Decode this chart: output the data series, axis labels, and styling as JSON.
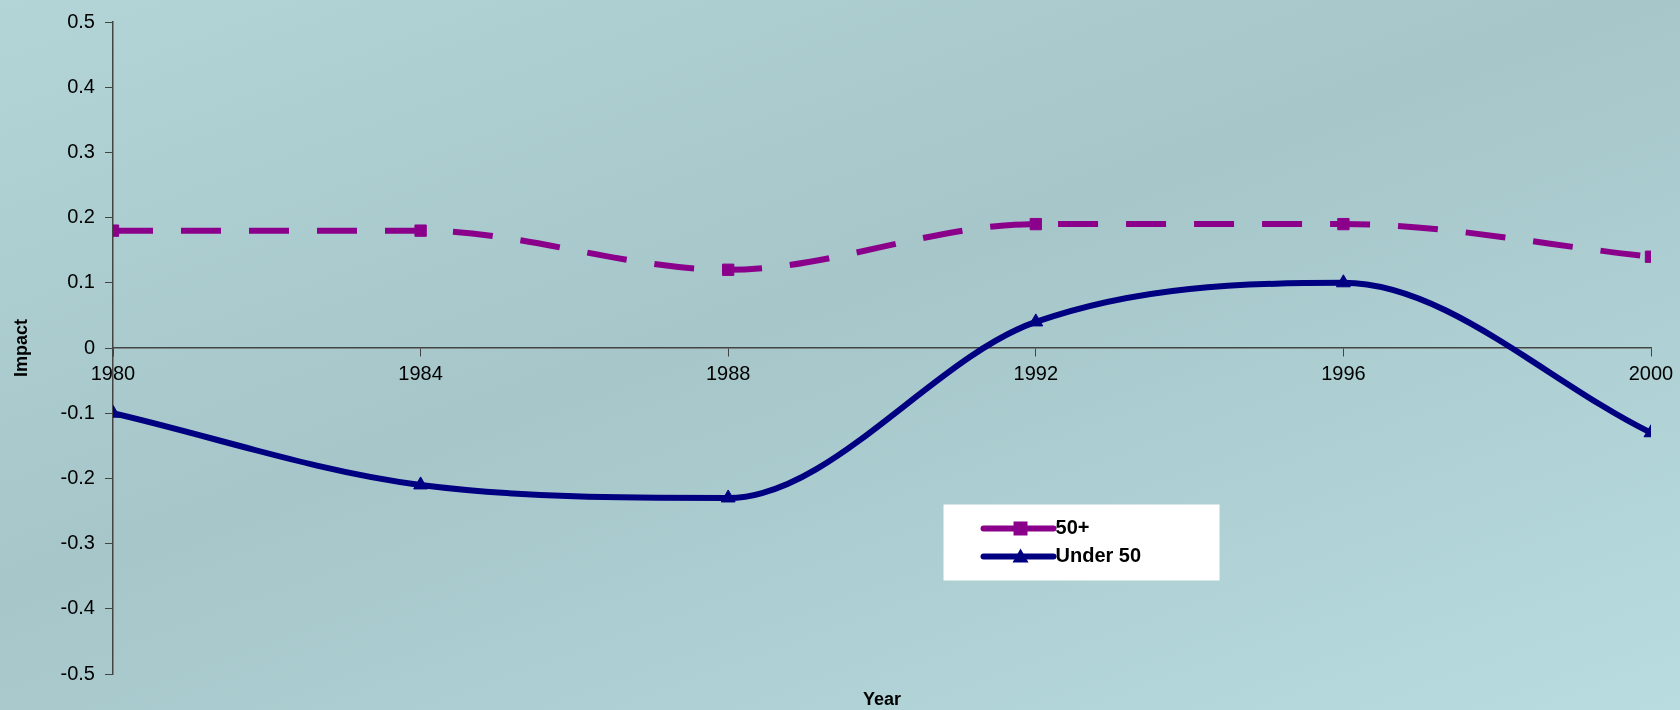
{
  "chart_data": {
    "type": "line",
    "xlabel": "Year",
    "ylabel": "Impact",
    "x": [
      1980,
      1984,
      1988,
      1992,
      1996,
      2000
    ],
    "series": [
      {
        "name": "50+",
        "color": "#8b008b",
        "values": [
          0.18,
          0.18,
          0.12,
          0.19,
          0.19,
          0.14
        ],
        "marker": "square",
        "line_style": "dashed"
      },
      {
        "name": "Under 50",
        "color": "#000080",
        "values": [
          -0.1,
          -0.21,
          -0.23,
          0.04,
          0.1,
          -0.13
        ],
        "marker": "triangle",
        "line_style": "solid"
      }
    ],
    "xlim": [
      1980,
      2000
    ],
    "xticks": [
      1980,
      1984,
      1988,
      1992,
      1996,
      2000
    ],
    "ylim": [
      -0.5,
      0.5
    ],
    "yticks": [
      -0.5,
      -0.4,
      -0.3,
      -0.2,
      -0.1,
      0,
      0.1,
      0.2,
      0.3,
      0.4,
      0.5
    ],
    "grid": false,
    "legend": "bottom right"
  }
}
